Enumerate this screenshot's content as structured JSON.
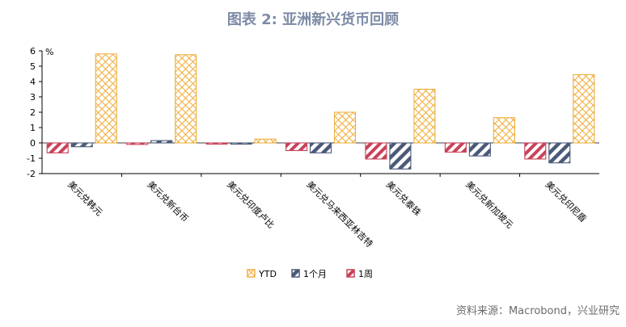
{
  "title": "图表 2: 亚洲新兴货币回顾",
  "source": "资料来源：Macrobond，兴业研究",
  "chart_data": {
    "type": "bar",
    "unit": "%",
    "categories": [
      "美元兑韩元",
      "美元兑新台币",
      "美元兑印度卢比",
      "美元兑马来西亚林吉特",
      "美元兑泰铢",
      "美元兑新加坡元",
      "美元兑印尼盾"
    ],
    "series": [
      {
        "name": "1周",
        "color": "#c8425a",
        "values": [
          -0.65,
          -0.1,
          -0.05,
          -0.5,
          -1.05,
          -0.6,
          -1.05
        ]
      },
      {
        "name": "1个月",
        "color": "#4a5a78",
        "values": [
          -0.25,
          0.15,
          -0.05,
          -0.65,
          -1.7,
          -0.85,
          -1.3
        ]
      },
      {
        "name": "YTD",
        "color": "#f0b040",
        "values": [
          5.8,
          5.75,
          0.25,
          2.0,
          3.5,
          1.65,
          4.45
        ]
      }
    ],
    "ylim": [
      -2,
      6
    ],
    "yticks": [
      -2,
      -1,
      0,
      1,
      2,
      3,
      4,
      5,
      6
    ],
    "legend_order": [
      "YTD",
      "1个月",
      "1周"
    ],
    "legend_position": "bottom"
  }
}
